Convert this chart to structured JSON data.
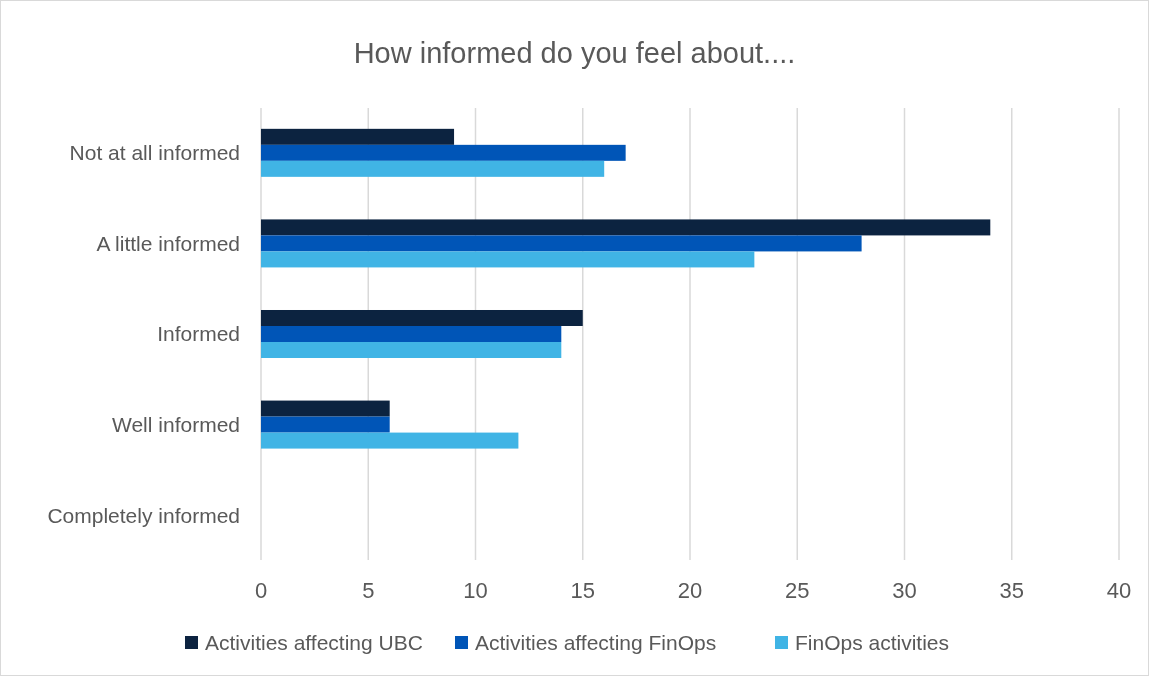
{
  "chart_data": {
    "type": "bar",
    "orientation": "horizontal",
    "title": "How informed do you feel about....",
    "categories": [
      "Not at all informed",
      "A little informed",
      "Informed",
      "Well informed",
      "Completely informed"
    ],
    "series": [
      {
        "name": "Activities affecting UBC",
        "color": "#0c2340",
        "values": [
          9,
          34,
          15,
          6,
          0
        ]
      },
      {
        "name": "Activities affecting FinOps",
        "color": "#0055b7",
        "values": [
          17,
          28,
          14,
          6,
          0
        ]
      },
      {
        "name": "FinOps activities",
        "color": "#40b4e5",
        "values": [
          16,
          23,
          14,
          12,
          0
        ]
      }
    ],
    "xlim": [
      0,
      40
    ],
    "xticks": [
      0,
      5,
      10,
      15,
      20,
      25,
      30,
      35,
      40
    ],
    "grid": "x",
    "legend": "bottom"
  }
}
